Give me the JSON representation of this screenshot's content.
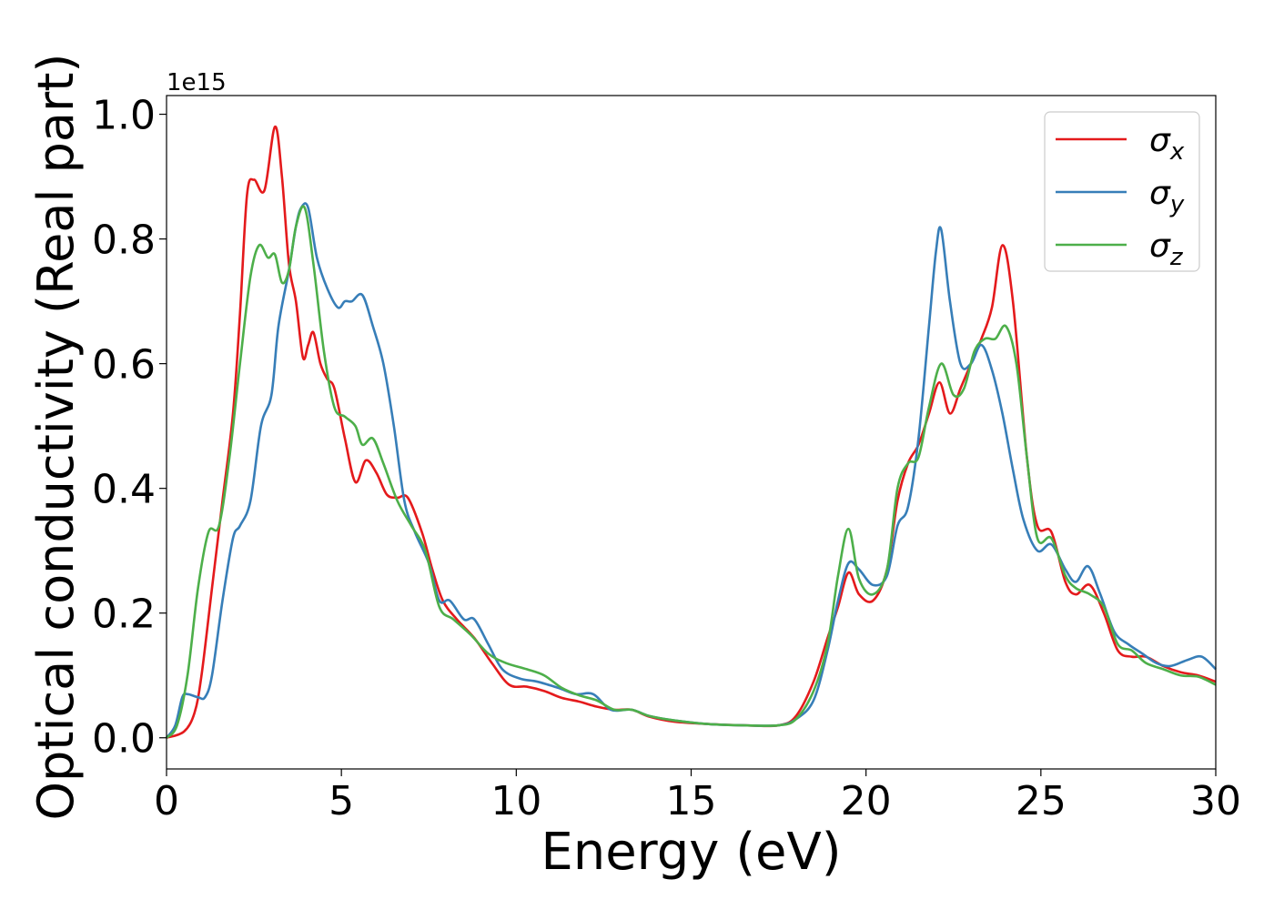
{
  "chart_data": {
    "type": "line",
    "xlabel": "Energy (eV)",
    "ylabel": "Optical conductivity (Real part)",
    "offset_label": "1e15",
    "xlim": [
      0,
      30
    ],
    "ylim": [
      -0.05,
      1.03
    ],
    "xticks": [
      0,
      5,
      10,
      15,
      20,
      25,
      30
    ],
    "yticks": [
      0.0,
      0.2,
      0.4,
      0.6,
      0.8,
      1.0
    ],
    "grid": false,
    "legend_position": "top-right",
    "series": [
      {
        "name": "σx",
        "symbol": "σ",
        "subscript": "x",
        "color": "#e41a1c",
        "points": [
          [
            0,
            0
          ],
          [
            0.5,
            0.01
          ],
          [
            0.8,
            0.04
          ],
          [
            1.0,
            0.1
          ],
          [
            1.3,
            0.24
          ],
          [
            1.6,
            0.38
          ],
          [
            1.9,
            0.52
          ],
          [
            2.1,
            0.68
          ],
          [
            2.3,
            0.87
          ],
          [
            2.5,
            0.895
          ],
          [
            2.8,
            0.878
          ],
          [
            3.1,
            0.98
          ],
          [
            3.3,
            0.9
          ],
          [
            3.5,
            0.76
          ],
          [
            3.7,
            0.7
          ],
          [
            3.9,
            0.61
          ],
          [
            4.05,
            0.63
          ],
          [
            4.2,
            0.65
          ],
          [
            4.4,
            0.6
          ],
          [
            4.6,
            0.575
          ],
          [
            4.8,
            0.56
          ],
          [
            5.1,
            0.48
          ],
          [
            5.4,
            0.41
          ],
          [
            5.7,
            0.445
          ],
          [
            6.0,
            0.425
          ],
          [
            6.3,
            0.39
          ],
          [
            6.6,
            0.385
          ],
          [
            6.9,
            0.385
          ],
          [
            7.3,
            0.33
          ],
          [
            7.6,
            0.27
          ],
          [
            7.9,
            0.22
          ],
          [
            8.3,
            0.19
          ],
          [
            8.8,
            0.16
          ],
          [
            9.3,
            0.12
          ],
          [
            9.8,
            0.085
          ],
          [
            10.3,
            0.082
          ],
          [
            10.8,
            0.075
          ],
          [
            11.3,
            0.064
          ],
          [
            11.8,
            0.058
          ],
          [
            12.3,
            0.05
          ],
          [
            12.8,
            0.045
          ],
          [
            13.3,
            0.045
          ],
          [
            13.8,
            0.034
          ],
          [
            14.5,
            0.026
          ],
          [
            15.5,
            0.022
          ],
          [
            16.5,
            0.02
          ],
          [
            17.5,
            0.02
          ],
          [
            18.0,
            0.035
          ],
          [
            18.5,
            0.09
          ],
          [
            18.9,
            0.16
          ],
          [
            19.2,
            0.21
          ],
          [
            19.5,
            0.265
          ],
          [
            19.8,
            0.23
          ],
          [
            20.2,
            0.22
          ],
          [
            20.6,
            0.27
          ],
          [
            20.9,
            0.38
          ],
          [
            21.2,
            0.44
          ],
          [
            21.5,
            0.47
          ],
          [
            21.8,
            0.52
          ],
          [
            22.1,
            0.57
          ],
          [
            22.4,
            0.52
          ],
          [
            22.7,
            0.56
          ],
          [
            23.0,
            0.6
          ],
          [
            23.3,
            0.64
          ],
          [
            23.6,
            0.69
          ],
          [
            23.9,
            0.79
          ],
          [
            24.2,
            0.7
          ],
          [
            24.6,
            0.45
          ],
          [
            24.9,
            0.34
          ],
          [
            25.3,
            0.33
          ],
          [
            25.7,
            0.25
          ],
          [
            26.0,
            0.23
          ],
          [
            26.4,
            0.245
          ],
          [
            26.8,
            0.2
          ],
          [
            27.2,
            0.14
          ],
          [
            27.6,
            0.13
          ],
          [
            28.0,
            0.13
          ],
          [
            28.5,
            0.115
          ],
          [
            29.0,
            0.105
          ],
          [
            29.5,
            0.1
          ],
          [
            30.0,
            0.09
          ]
        ]
      },
      {
        "name": "σy",
        "symbol": "σ",
        "subscript": "y",
        "color": "#377eb8",
        "points": [
          [
            0,
            0
          ],
          [
            0.25,
            0.02
          ],
          [
            0.45,
            0.065
          ],
          [
            0.6,
            0.07
          ],
          [
            0.9,
            0.065
          ],
          [
            1.1,
            0.065
          ],
          [
            1.3,
            0.1
          ],
          [
            1.6,
            0.22
          ],
          [
            1.9,
            0.32
          ],
          [
            2.1,
            0.34
          ],
          [
            2.4,
            0.38
          ],
          [
            2.7,
            0.5
          ],
          [
            3.0,
            0.55
          ],
          [
            3.2,
            0.66
          ],
          [
            3.5,
            0.75
          ],
          [
            3.7,
            0.82
          ],
          [
            3.85,
            0.85
          ],
          [
            4.05,
            0.85
          ],
          [
            4.3,
            0.77
          ],
          [
            4.6,
            0.72
          ],
          [
            4.9,
            0.69
          ],
          [
            5.1,
            0.7
          ],
          [
            5.3,
            0.7
          ],
          [
            5.6,
            0.71
          ],
          [
            5.9,
            0.66
          ],
          [
            6.2,
            0.6
          ],
          [
            6.5,
            0.5
          ],
          [
            6.8,
            0.38
          ],
          [
            7.1,
            0.33
          ],
          [
            7.5,
            0.28
          ],
          [
            7.8,
            0.22
          ],
          [
            8.1,
            0.22
          ],
          [
            8.5,
            0.19
          ],
          [
            8.8,
            0.19
          ],
          [
            9.2,
            0.15
          ],
          [
            9.6,
            0.11
          ],
          [
            10.1,
            0.095
          ],
          [
            10.6,
            0.09
          ],
          [
            11.2,
            0.08
          ],
          [
            11.7,
            0.07
          ],
          [
            12.2,
            0.07
          ],
          [
            12.7,
            0.045
          ],
          [
            13.3,
            0.045
          ],
          [
            13.8,
            0.035
          ],
          [
            14.5,
            0.028
          ],
          [
            15.5,
            0.022
          ],
          [
            16.5,
            0.02
          ],
          [
            17.5,
            0.02
          ],
          [
            18.0,
            0.03
          ],
          [
            18.5,
            0.06
          ],
          [
            18.9,
            0.14
          ],
          [
            19.2,
            0.22
          ],
          [
            19.5,
            0.28
          ],
          [
            19.8,
            0.27
          ],
          [
            20.2,
            0.245
          ],
          [
            20.6,
            0.26
          ],
          [
            20.9,
            0.34
          ],
          [
            21.2,
            0.37
          ],
          [
            21.5,
            0.48
          ],
          [
            21.8,
            0.66
          ],
          [
            22.0,
            0.78
          ],
          [
            22.15,
            0.815
          ],
          [
            22.4,
            0.7
          ],
          [
            22.7,
            0.6
          ],
          [
            23.0,
            0.6
          ],
          [
            23.3,
            0.63
          ],
          [
            23.6,
            0.59
          ],
          [
            23.9,
            0.52
          ],
          [
            24.2,
            0.43
          ],
          [
            24.5,
            0.35
          ],
          [
            24.9,
            0.3
          ],
          [
            25.3,
            0.31
          ],
          [
            25.7,
            0.27
          ],
          [
            26.0,
            0.25
          ],
          [
            26.35,
            0.275
          ],
          [
            26.7,
            0.23
          ],
          [
            27.1,
            0.17
          ],
          [
            27.5,
            0.15
          ],
          [
            27.9,
            0.135
          ],
          [
            28.3,
            0.12
          ],
          [
            28.7,
            0.115
          ],
          [
            29.2,
            0.125
          ],
          [
            29.6,
            0.13
          ],
          [
            30.0,
            0.11
          ]
        ]
      },
      {
        "name": "σz",
        "symbol": "σ",
        "subscript": "z",
        "color": "#4daf4a",
        "points": [
          [
            0,
            0
          ],
          [
            0.3,
            0.02
          ],
          [
            0.6,
            0.1
          ],
          [
            0.9,
            0.24
          ],
          [
            1.2,
            0.33
          ],
          [
            1.5,
            0.34
          ],
          [
            1.8,
            0.45
          ],
          [
            2.1,
            0.6
          ],
          [
            2.4,
            0.74
          ],
          [
            2.65,
            0.79
          ],
          [
            2.9,
            0.77
          ],
          [
            3.1,
            0.775
          ],
          [
            3.3,
            0.73
          ],
          [
            3.5,
            0.75
          ],
          [
            3.7,
            0.82
          ],
          [
            3.95,
            0.85
          ],
          [
            4.2,
            0.76
          ],
          [
            4.5,
            0.62
          ],
          [
            4.8,
            0.53
          ],
          [
            5.1,
            0.515
          ],
          [
            5.4,
            0.5
          ],
          [
            5.6,
            0.47
          ],
          [
            5.9,
            0.48
          ],
          [
            6.2,
            0.44
          ],
          [
            6.6,
            0.38
          ],
          [
            7.0,
            0.34
          ],
          [
            7.4,
            0.3
          ],
          [
            7.8,
            0.21
          ],
          [
            8.2,
            0.19
          ],
          [
            8.7,
            0.165
          ],
          [
            9.2,
            0.135
          ],
          [
            9.7,
            0.12
          ],
          [
            10.3,
            0.11
          ],
          [
            10.8,
            0.1
          ],
          [
            11.3,
            0.08
          ],
          [
            11.8,
            0.068
          ],
          [
            12.3,
            0.06
          ],
          [
            12.8,
            0.045
          ],
          [
            13.3,
            0.045
          ],
          [
            13.8,
            0.035
          ],
          [
            14.5,
            0.028
          ],
          [
            15.5,
            0.022
          ],
          [
            16.5,
            0.02
          ],
          [
            17.5,
            0.02
          ],
          [
            18.0,
            0.03
          ],
          [
            18.5,
            0.075
          ],
          [
            18.9,
            0.15
          ],
          [
            19.2,
            0.26
          ],
          [
            19.5,
            0.335
          ],
          [
            19.8,
            0.255
          ],
          [
            20.2,
            0.23
          ],
          [
            20.6,
            0.27
          ],
          [
            20.9,
            0.4
          ],
          [
            21.2,
            0.44
          ],
          [
            21.5,
            0.45
          ],
          [
            21.8,
            0.53
          ],
          [
            22.15,
            0.6
          ],
          [
            22.5,
            0.55
          ],
          [
            22.8,
            0.56
          ],
          [
            23.1,
            0.62
          ],
          [
            23.4,
            0.64
          ],
          [
            23.7,
            0.64
          ],
          [
            24.0,
            0.66
          ],
          [
            24.3,
            0.6
          ],
          [
            24.6,
            0.45
          ],
          [
            24.9,
            0.32
          ],
          [
            25.3,
            0.32
          ],
          [
            25.7,
            0.26
          ],
          [
            26.0,
            0.24
          ],
          [
            26.4,
            0.23
          ],
          [
            26.8,
            0.21
          ],
          [
            27.2,
            0.15
          ],
          [
            27.6,
            0.14
          ],
          [
            28.0,
            0.12
          ],
          [
            28.5,
            0.11
          ],
          [
            29.0,
            0.1
          ],
          [
            29.5,
            0.098
          ],
          [
            30.0,
            0.085
          ]
        ]
      }
    ]
  }
}
